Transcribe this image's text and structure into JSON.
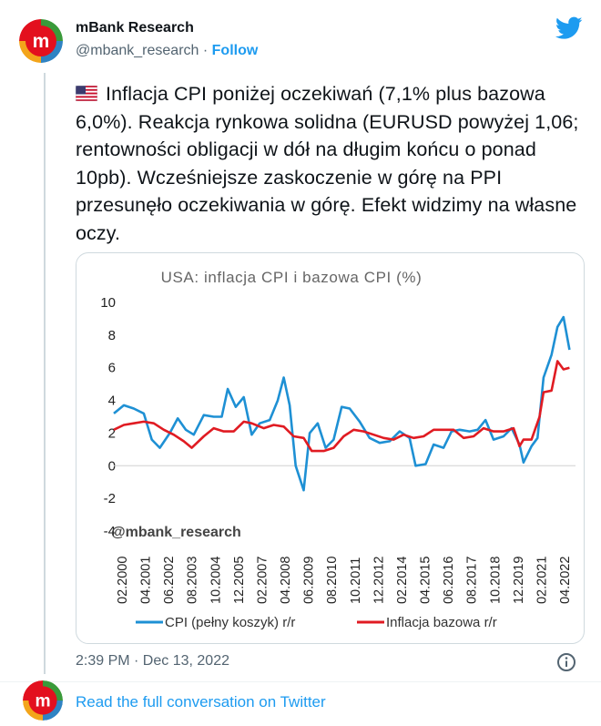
{
  "author": {
    "name": "mBank Research",
    "handle": "@mbank_research",
    "separator": " · ",
    "follow_label": "Follow"
  },
  "tweet": {
    "text": "Inflacja CPI poniżej oczekiwań (7,1% plus bazowa 6,0%). Reakcja rynkowa solidna (EURUSD powyżej 1,06; rentowności obligacji w dół na długim końcu o ponad 10pb). Wcześniejsze zaskoczenie w górę na PPI przesunęło oczekiwania w górę. Efekt widzimy na własne oczy.",
    "timestamp": "2:39 PM · Dec 13, 2022",
    "read_more_label": "Read the full conversation on Twitter"
  },
  "colors": {
    "brand_red": "#e3101e",
    "link_blue": "#1d9bf0",
    "cpi_blue": "#1e90d4",
    "core_red": "#e01b22"
  },
  "icons": [
    "twitter-bird-icon",
    "us-flag-icon",
    "info-icon",
    "mbank-logo-icon"
  ],
  "chart_data": {
    "type": "line",
    "title": "USA: inflacja CPI i bazowa CPI (%)",
    "watermark": "@mbank_research",
    "ylim": [
      -4,
      10
    ],
    "yticks": [
      "10",
      "8",
      "6",
      "4",
      "2",
      "0",
      "-2",
      "-4"
    ],
    "xticks": [
      "02.2000",
      "04.2001",
      "06.2002",
      "08.2003",
      "10.2004",
      "12.2005",
      "02.2007",
      "04.2008",
      "06.2009",
      "08.2010",
      "10.2011",
      "12.2012",
      "02.2014",
      "04.2015",
      "06.2016",
      "08.2017",
      "10.2018",
      "12.2019",
      "02.2021",
      "04.2022"
    ],
    "grid": false,
    "legend_position": "bottom",
    "series": [
      {
        "name": "CPI (pełny koszyk) r/r",
        "color": "#1e90d4",
        "x": [
          2000.0,
          2000.5,
          2001.0,
          2001.5,
          2001.9,
          2002.3,
          2002.8,
          2003.2,
          2003.6,
          2004.0,
          2004.5,
          2005.0,
          2005.4,
          2005.7,
          2006.1,
          2006.5,
          2006.9,
          2007.3,
          2007.8,
          2008.2,
          2008.5,
          2008.8,
          2009.1,
          2009.5,
          2009.8,
          2010.2,
          2010.6,
          2011.0,
          2011.4,
          2011.8,
          2012.3,
          2012.8,
          2013.3,
          2013.8,
          2014.3,
          2014.8,
          2015.1,
          2015.6,
          2016.0,
          2016.5,
          2016.9,
          2017.3,
          2017.8,
          2018.2,
          2018.6,
          2019.0,
          2019.5,
          2019.9,
          2020.3,
          2020.5,
          2020.9,
          2021.2,
          2021.5,
          2021.9,
          2022.2,
          2022.5,
          2022.8
        ],
        "values": [
          3.2,
          3.7,
          3.5,
          3.2,
          1.6,
          1.1,
          2.0,
          2.9,
          2.2,
          1.9,
          3.1,
          3.0,
          3.0,
          4.7,
          3.6,
          4.2,
          1.9,
          2.6,
          2.8,
          4.0,
          5.4,
          3.7,
          0.0,
          -1.5,
          2.0,
          2.6,
          1.1,
          1.6,
          3.6,
          3.5,
          2.7,
          1.7,
          1.4,
          1.5,
          2.1,
          1.7,
          0.0,
          0.1,
          1.3,
          1.1,
          2.1,
          2.2,
          2.1,
          2.2,
          2.8,
          1.6,
          1.8,
          2.3,
          1.3,
          0.2,
          1.2,
          1.7,
          5.4,
          6.8,
          8.5,
          9.1,
          7.1
        ]
      },
      {
        "name": "Inflacja bazowa r/r",
        "color": "#e01b22",
        "x": [
          2000.0,
          2000.5,
          2001.0,
          2001.5,
          2002.0,
          2002.5,
          2003.0,
          2003.5,
          2003.9,
          2004.5,
          2005.0,
          2005.5,
          2006.0,
          2006.5,
          2006.9,
          2007.5,
          2008.0,
          2008.5,
          2009.0,
          2009.5,
          2009.9,
          2010.5,
          2011.0,
          2011.5,
          2012.0,
          2012.5,
          2013.0,
          2013.5,
          2014.0,
          2014.5,
          2015.0,
          2015.5,
          2016.0,
          2016.5,
          2017.0,
          2017.5,
          2018.0,
          2018.5,
          2019.0,
          2019.5,
          2020.0,
          2020.3,
          2020.5,
          2020.9,
          2021.3,
          2021.5,
          2021.9,
          2022.2,
          2022.5,
          2022.8
        ],
        "values": [
          2.2,
          2.5,
          2.6,
          2.7,
          2.6,
          2.2,
          1.9,
          1.5,
          1.1,
          1.8,
          2.3,
          2.1,
          2.1,
          2.7,
          2.6,
          2.3,
          2.5,
          2.4,
          1.8,
          1.7,
          0.9,
          0.9,
          1.1,
          1.8,
          2.2,
          2.1,
          1.9,
          1.7,
          1.6,
          1.9,
          1.7,
          1.8,
          2.2,
          2.2,
          2.2,
          1.7,
          1.8,
          2.3,
          2.1,
          2.1,
          2.3,
          1.2,
          1.6,
          1.6,
          3.0,
          4.5,
          4.6,
          6.4,
          5.9,
          6.0
        ]
      }
    ]
  }
}
